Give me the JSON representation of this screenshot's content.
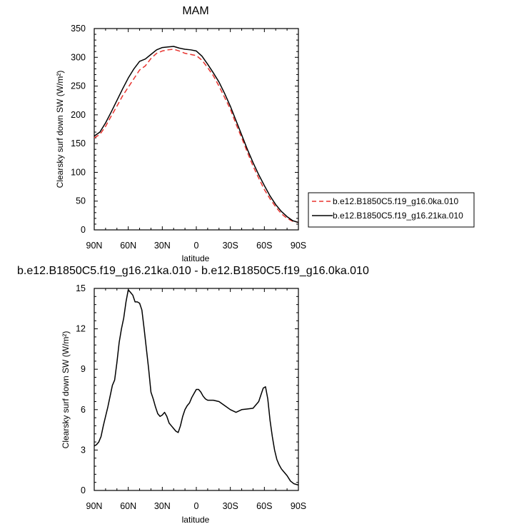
{
  "figure": {
    "panel_top": {
      "title": "MAM"
    },
    "panel_bottom": {
      "title": "b.e12.B1850C5.f19_g16.21ka.010 - b.e12.B1850C5.f19_g16.0ka.010"
    }
  },
  "chart_data": [
    {
      "type": "line",
      "title": "MAM",
      "xlabel": "latitude",
      "ylabel": "Clearsky surf down SW (W/m²)",
      "xlim": [
        90,
        -90
      ],
      "ylim": [
        0,
        350
      ],
      "xticks": [
        90,
        60,
        30,
        0,
        -30,
        -60,
        -90
      ],
      "xtick_labels": [
        "90N",
        "60N",
        "30N",
        "0",
        "30S",
        "60S",
        "90S"
      ],
      "yticks": [
        0,
        50,
        100,
        150,
        200,
        250,
        300,
        350
      ],
      "ytick_labels": [
        "0",
        "50",
        "100",
        "150",
        "200",
        "250",
        "300",
        "350"
      ],
      "legend_position": "right",
      "series": [
        {
          "name": "b.e12.B1850C5.f19_g16.0ka.010",
          "color": "#e8332f",
          "dash": "dashed",
          "x": [
            90,
            85,
            80,
            75,
            70,
            65,
            60,
            55,
            50,
            45,
            40,
            35,
            30,
            25,
            20,
            15,
            10,
            5,
            0,
            -5,
            -10,
            -15,
            -20,
            -25,
            -30,
            -35,
            -40,
            -45,
            -50,
            -55,
            -60,
            -65,
            -70,
            -75,
            -80,
            -85,
            -90
          ],
          "y": [
            160,
            166,
            180,
            198,
            215,
            233,
            248,
            263,
            278,
            285,
            298,
            307,
            311,
            313,
            314,
            311,
            307,
            305,
            303,
            295,
            282,
            268,
            250,
            230,
            210,
            184,
            160,
            135,
            111,
            90,
            70,
            54,
            40,
            28,
            20,
            15,
            13
          ]
        },
        {
          "name": "b.e12.B1850C5.f19_g16.21ka.010",
          "color": "#000000",
          "dash": "solid",
          "x": [
            90,
            85,
            80,
            75,
            70,
            65,
            60,
            55,
            50,
            45,
            40,
            35,
            30,
            25,
            20,
            15,
            10,
            5,
            0,
            -5,
            -10,
            -15,
            -20,
            -25,
            -30,
            -35,
            -40,
            -45,
            -50,
            -55,
            -60,
            -65,
            -70,
            -75,
            -80,
            -85,
            -90
          ],
          "y": [
            163,
            170,
            186,
            205,
            225,
            245,
            264,
            280,
            293,
            297,
            305,
            313,
            317,
            318,
            319,
            316,
            314,
            313,
            311,
            302,
            288,
            273,
            257,
            237,
            215,
            190,
            165,
            140,
            117,
            96,
            77,
            59,
            44,
            32,
            23,
            16,
            13
          ]
        }
      ]
    },
    {
      "type": "line",
      "title": "b.e12.B1850C5.f19_g16.21ka.010 - b.e12.B1850C5.f19_g16.0ka.010",
      "xlabel": "latitude",
      "ylabel": "Clearsky surf down SW (W/m²)",
      "xlim": [
        90,
        -90
      ],
      "ylim": [
        0,
        15
      ],
      "xticks": [
        90,
        60,
        30,
        0,
        -30,
        -60,
        -90
      ],
      "xtick_labels": [
        "90N",
        "60N",
        "30N",
        "0",
        "30S",
        "60S",
        "90S"
      ],
      "yticks": [
        0,
        3,
        6,
        9,
        12,
        15
      ],
      "ytick_labels": [
        "0",
        "3",
        "6",
        "9",
        "12",
        "15"
      ],
      "series": [
        {
          "color": "#000000",
          "dash": "solid",
          "x": [
            90,
            88,
            86,
            84,
            82,
            80,
            78,
            76,
            74,
            72,
            70,
            68,
            66,
            64,
            62,
            60,
            58,
            56,
            54,
            52,
            50,
            48,
            46,
            44,
            42,
            40,
            38,
            36,
            34,
            32,
            30,
            28,
            26,
            24,
            22,
            20,
            18,
            16,
            14,
            12,
            10,
            8,
            6,
            4,
            2,
            0,
            -2,
            -4,
            -6,
            -8,
            -10,
            -15,
            -20,
            -25,
            -30,
            -35,
            -40,
            -45,
            -50,
            -55,
            -57,
            -59,
            -61,
            -63,
            -65,
            -67,
            -69,
            -71,
            -73,
            -75,
            -77,
            -80,
            -83,
            -86,
            -88,
            -90
          ],
          "y": [
            3.3,
            3.4,
            3.6,
            4.0,
            4.8,
            5.5,
            6.2,
            7.0,
            7.8,
            8.2,
            9.5,
            11.0,
            12.0,
            12.8,
            14.0,
            14.9,
            14.7,
            14.5,
            14.0,
            14.0,
            13.9,
            13.4,
            12.0,
            10.5,
            9.0,
            7.3,
            6.8,
            6.2,
            5.7,
            5.5,
            5.6,
            5.8,
            5.5,
            5.0,
            4.8,
            4.6,
            4.4,
            4.3,
            4.8,
            5.5,
            6.0,
            6.3,
            6.5,
            6.9,
            7.2,
            7.5,
            7.5,
            7.3,
            7.0,
            6.8,
            6.7,
            6.7,
            6.6,
            6.3,
            6.0,
            5.8,
            6.0,
            6.05,
            6.1,
            6.6,
            7.1,
            7.6,
            7.7,
            6.8,
            5.2,
            4.0,
            3.0,
            2.3,
            1.9,
            1.6,
            1.4,
            1.1,
            0.7,
            0.5,
            0.45,
            0.4
          ]
        }
      ]
    }
  ]
}
